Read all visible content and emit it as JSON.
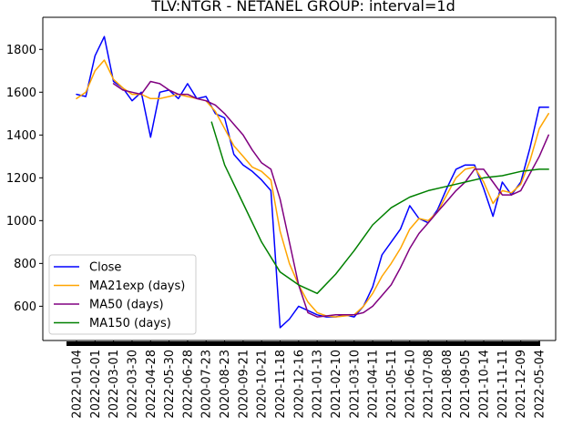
{
  "chart_data": {
    "type": "line",
    "title": "TLV:NTGR - NETANEL GROUP: interval=1d",
    "xlabel": "",
    "ylabel": "",
    "ylim": [
      440,
      1950
    ],
    "y_ticks": [
      600,
      800,
      1000,
      1200,
      1400,
      1600,
      1800
    ],
    "x_ticks": [
      "2022-01-04",
      "2022-02-01",
      "2022-03-01",
      "2022-03-30",
      "2022-04-28",
      "2022-05-30",
      "2022-06-28",
      "2020-07-23",
      "2020-08-23",
      "2020-09-21",
      "2020-10-21",
      "2020-11-18",
      "2020-12-16",
      "2021-01-13",
      "2021-02-10",
      "2021-03-10",
      "2021-04-11",
      "2021-05-11",
      "2021-06-10",
      "2021-07-08",
      "2021-08-08",
      "2021-09-05",
      "2021-10-14",
      "2021-11-11",
      "2021-12-09",
      "2022-05-04"
    ],
    "legend": {
      "position": "lower-left"
    },
    "grid": false,
    "series": [
      {
        "name": "Close",
        "color": "#0000ff",
        "x": [
          0,
          0.5,
          1,
          1.5,
          2,
          2.5,
          3,
          3.5,
          4,
          4.5,
          5,
          5.5,
          6,
          6.5,
          7,
          7.5,
          8,
          8.5,
          9,
          9.5,
          10,
          10.5,
          11,
          11.5,
          12,
          12.5,
          13,
          13.5,
          14,
          14.5,
          15,
          15.5,
          16,
          16.5,
          17,
          17.5,
          18,
          18.5,
          19,
          19.5,
          20,
          20.5,
          21,
          21.5,
          22,
          22.5,
          23,
          23.5,
          24,
          24.5,
          25,
          25.5
        ],
        "y": [
          1590,
          1580,
          1770,
          1860,
          1650,
          1620,
          1560,
          1600,
          1390,
          1600,
          1610,
          1570,
          1640,
          1570,
          1580,
          1500,
          1480,
          1310,
          1260,
          1230,
          1190,
          1140,
          500,
          540,
          600,
          580,
          560,
          550,
          550,
          560,
          550,
          600,
          690,
          840,
          900,
          960,
          1070,
          1010,
          990,
          1050,
          1150,
          1240,
          1260,
          1260,
          1150,
          1020,
          1180,
          1120,
          1180,
          1340,
          1530,
          1530
        ]
      },
      {
        "name": "MA21exp (days)",
        "color": "#ffa500",
        "x": [
          0,
          0.5,
          1,
          1.5,
          2,
          2.5,
          3,
          3.5,
          4,
          4.5,
          5,
          5.5,
          6,
          6.5,
          7,
          7.5,
          8,
          8.5,
          9,
          9.5,
          10,
          10.5,
          11,
          11.5,
          12,
          12.5,
          13,
          13.5,
          14,
          14.5,
          15,
          15.5,
          16,
          16.5,
          17,
          17.5,
          18,
          18.5,
          19,
          19.5,
          20,
          20.5,
          21,
          21.5,
          22,
          22.5,
          23,
          23.5,
          24,
          24.5,
          25,
          25.5
        ],
        "y": [
          1570,
          1600,
          1700,
          1750,
          1660,
          1620,
          1590,
          1590,
          1570,
          1570,
          1580,
          1590,
          1580,
          1570,
          1560,
          1510,
          1430,
          1350,
          1300,
          1250,
          1230,
          1190,
          950,
          800,
          700,
          620,
          570,
          555,
          550,
          555,
          560,
          600,
          660,
          740,
          800,
          870,
          960,
          1010,
          1000,
          1040,
          1120,
          1200,
          1240,
          1250,
          1180,
          1080,
          1140,
          1130,
          1170,
          1280,
          1430,
          1500
        ]
      },
      {
        "name": "MA50 (days)",
        "color": "#800080",
        "x": [
          2,
          2.5,
          3,
          3.5,
          4,
          4.5,
          5,
          5.5,
          6,
          6.5,
          7,
          7.5,
          8,
          8.5,
          9,
          9.5,
          10,
          10.5,
          11,
          11.5,
          12,
          12.5,
          13,
          13.5,
          14,
          14.5,
          15,
          15.5,
          16,
          16.5,
          17,
          17.5,
          18,
          18.5,
          19,
          19.5,
          20,
          20.5,
          21,
          21.5,
          22,
          22.5,
          23,
          23.5,
          24,
          24.5,
          25,
          25.5
        ],
        "y": [
          1640,
          1610,
          1600,
          1590,
          1650,
          1640,
          1610,
          1590,
          1590,
          1570,
          1560,
          1540,
          1500,
          1450,
          1400,
          1330,
          1270,
          1240,
          1100,
          900,
          700,
          570,
          550,
          555,
          560,
          560,
          560,
          570,
          600,
          650,
          700,
          780,
          870,
          940,
          990,
          1040,
          1090,
          1140,
          1180,
          1240,
          1240,
          1180,
          1120,
          1120,
          1140,
          1220,
          1300,
          1400
        ]
      },
      {
        "name": "MA150 (days)",
        "color": "#008000",
        "x": [
          7.3,
          8,
          9,
          10,
          11,
          12,
          13,
          14,
          15,
          16,
          17,
          18,
          19,
          20,
          21,
          22,
          23,
          24,
          25,
          25.5
        ],
        "y": [
          1460,
          1260,
          1080,
          900,
          760,
          700,
          660,
          750,
          860,
          980,
          1060,
          1110,
          1140,
          1160,
          1180,
          1200,
          1210,
          1230,
          1240,
          1240
        ]
      }
    ]
  }
}
